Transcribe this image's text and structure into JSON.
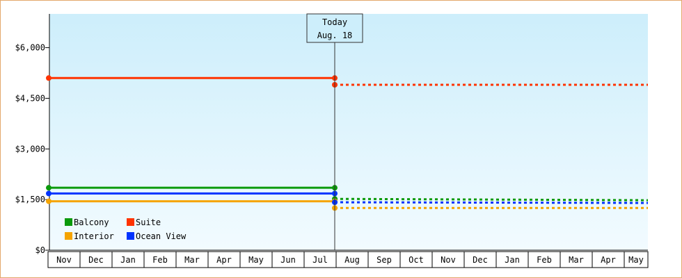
{
  "chart_data": {
    "type": "line",
    "title": "",
    "xlabel": "",
    "ylabel": "",
    "categories": [
      "Nov",
      "Dec",
      "Jan",
      "Feb",
      "Mar",
      "Apr",
      "May",
      "Jun",
      "Jul",
      "Aug",
      "Sep",
      "Oct",
      "Nov",
      "Dec",
      "Jan",
      "Feb",
      "Mar",
      "Apr",
      "May"
    ],
    "ylim": [
      0,
      7000
    ],
    "y_ticks": [
      0,
      1500,
      3000,
      4500,
      6000
    ],
    "y_tick_labels": [
      "$0",
      "$1,500",
      "$3,000",
      "$4,500",
      "$6,000"
    ],
    "today_marker": {
      "line1": "Today",
      "line2": "Aug. 18",
      "category_index": 9
    },
    "legend_position": "bottom-left",
    "series": [
      {
        "name": "Balcony",
        "color": "#0b9a0b",
        "history": 1850,
        "forecast_start": 1520,
        "forecast_end": 1480
      },
      {
        "name": "Suite",
        "color": "#ff3300",
        "history": 5100,
        "forecast_start": 4900,
        "forecast_end": 4900
      },
      {
        "name": "Interior",
        "color": "#f5a400",
        "history": 1450,
        "forecast_start": 1250,
        "forecast_end": 1250
      },
      {
        "name": "Ocean View",
        "color": "#0033ff",
        "history": 1680,
        "forecast_start": 1420,
        "forecast_end": 1400
      }
    ]
  }
}
